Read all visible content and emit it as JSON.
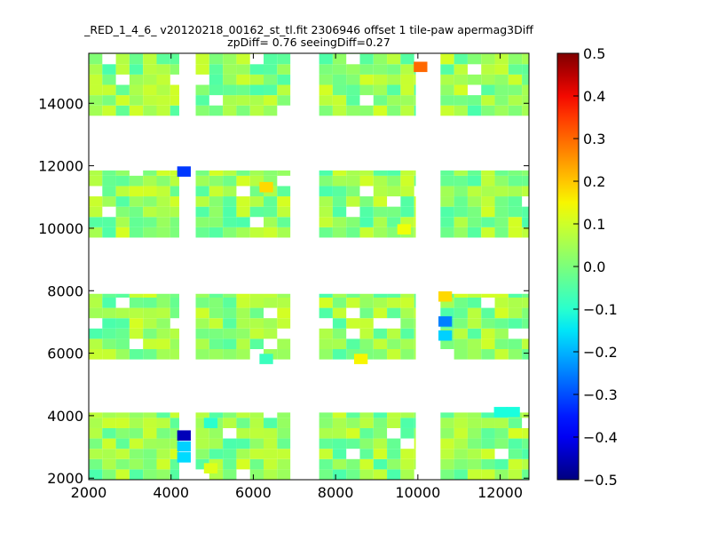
{
  "chart_data": {
    "type": "heatmap",
    "title_line1": "_RED_1_4_6_ v20120218_00162_st_tl.fit 2306946 offset 1 tile-paw apermag3Diff",
    "title_line2": "zpDiff= 0.76 seeingDiff=0.27",
    "xlim": [
      2000,
      12700
    ],
    "ylim": [
      1950,
      15600
    ],
    "xticks": [
      2000,
      4000,
      6000,
      8000,
      10000,
      12000
    ],
    "yticks": [
      2000,
      4000,
      6000,
      8000,
      10000,
      12000,
      14000
    ],
    "colorbar": {
      "min": -0.5,
      "max": 0.5,
      "ticks": [
        -0.5,
        -0.4,
        -0.3,
        -0.2,
        -0.1,
        0.0,
        0.1,
        0.2,
        0.3,
        0.4,
        0.5
      ],
      "tick_labels": [
        "−0.5",
        "−0.4",
        "−0.3",
        "−0.2",
        "−0.1",
        "0.0",
        "0.1",
        "0.2",
        "0.3",
        "0.4",
        "0.5"
      ],
      "colormap": "jet"
    },
    "cell_size": 330,
    "detector_cols": [
      [
        2000,
        4200
      ],
      [
        4600,
        6900
      ],
      [
        7600,
        9950
      ],
      [
        10550,
        12700
      ]
    ],
    "detector_rows": [
      [
        1950,
        4100
      ],
      [
        5800,
        7900
      ],
      [
        9700,
        11850
      ],
      [
        13600,
        15600
      ]
    ],
    "special_cells": [
      {
        "x": 9900,
        "y": 15000,
        "value": 0.3
      },
      {
        "x": 4150,
        "y": 11650,
        "value": -0.32
      },
      {
        "x": 6150,
        "y": 11150,
        "value": 0.18
      },
      {
        "x": 9500,
        "y": 9800,
        "value": 0.14
      },
      {
        "x": 10500,
        "y": 7650,
        "value": 0.18
      },
      {
        "x": 10500,
        "y": 6850,
        "value": -0.25
      },
      {
        "x": 10500,
        "y": 6400,
        "value": -0.17
      },
      {
        "x": 8450,
        "y": 5650,
        "value": 0.15
      },
      {
        "x": 6150,
        "y": 5650,
        "value": -0.08
      },
      {
        "x": 4150,
        "y": 3200,
        "value": -0.45
      },
      {
        "x": 4150,
        "y": 2850,
        "value": -0.17
      },
      {
        "x": 4150,
        "y": 2500,
        "value": -0.16
      },
      {
        "x": 4800,
        "y": 3600,
        "value": -0.1
      },
      {
        "x": 11850,
        "y": 3950,
        "value": -0.12
      },
      {
        "x": 12150,
        "y": 3950,
        "value": -0.12
      },
      {
        "x": 4800,
        "y": 2150,
        "value": 0.12
      }
    ]
  }
}
